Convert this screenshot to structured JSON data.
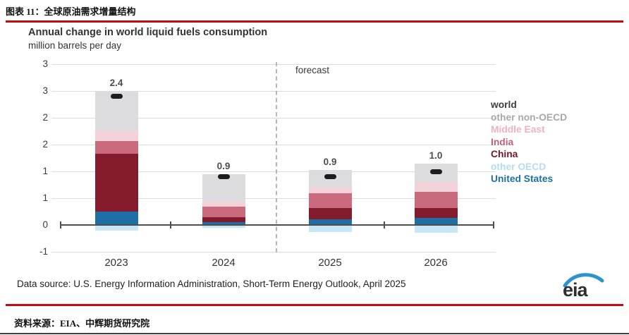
{
  "document": {
    "figure_caption": "图表 11：全球原油需求增量结构",
    "source_note": "资料来源：EIA、中辉期货研究院",
    "accent_red": "#c30d0d"
  },
  "chart": {
    "title": "Annual change in world liquid fuels consumption",
    "subtitle": "million barrels per day",
    "forecast_label": "forecast",
    "data_source": "Data source: U.S. Energy Information Administration, Short-Term Energy Outlook, April 2025",
    "logo_text": "eia",
    "logo_swoosh_color": "#2b93d1"
  },
  "chart_data": {
    "type": "bar",
    "stacked": true,
    "title": "Annual change in world liquid fuels consumption",
    "ylabel": "million barrels per day",
    "categories": [
      "2023",
      "2024",
      "2025",
      "2026"
    ],
    "series": [
      {
        "name": "United States",
        "color": "#1d6fa5",
        "values": [
          0.25,
          0.05,
          0.1,
          0.13
        ]
      },
      {
        "name": "China",
        "color": "#841b2d",
        "values": [
          1.08,
          0.1,
          0.21,
          0.19
        ]
      },
      {
        "name": "India",
        "color": "#c96a7d",
        "values": [
          0.24,
          0.19,
          0.28,
          0.3
        ]
      },
      {
        "name": "Middle East",
        "color": "#f3d1d8",
        "values": [
          0.19,
          0.1,
          0.12,
          0.18
        ]
      },
      {
        "name": "other non-OECD",
        "color": "#dcdcde",
        "values": [
          0.74,
          0.51,
          0.32,
          0.35
        ]
      },
      {
        "name": "other OECD",
        "color": "#c8e7f6",
        "values": [
          -0.1,
          -0.05,
          -0.13,
          -0.15
        ]
      }
    ],
    "world_totals": {
      "name": "world",
      "marker_color": "#1d1d1d",
      "values": [
        2.4,
        0.9,
        0.9,
        1.0
      ],
      "labels": [
        "2.4",
        "0.9",
        "0.9",
        "1.0"
      ]
    },
    "legend": [
      {
        "label": "world",
        "color": "#3d3d3d"
      },
      {
        "label": "other non-OECD",
        "color": "#a8a8a8"
      },
      {
        "label": "Middle East",
        "color": "#efb3c0"
      },
      {
        "label": "India",
        "color": "#c05f75"
      },
      {
        "label": "China",
        "color": "#7c1426"
      },
      {
        "label": "other OECD",
        "color": "#b2ddf0"
      },
      {
        "label": "United States",
        "color": "#1d6fa5"
      }
    ],
    "legend_position": "right",
    "y_axis": {
      "tick_values": [
        3.0,
        2.5,
        2.0,
        1.5,
        1.0,
        0.5,
        0.0,
        -0.5
      ],
      "tick_labels_as_printed": [
        "3",
        "3",
        "2",
        "2",
        "1",
        "1",
        "0",
        "-1"
      ],
      "ylim": [
        -0.5,
        3.0
      ]
    },
    "grid": true,
    "forecast_divider_between": [
      "2024",
      "2025"
    ]
  }
}
